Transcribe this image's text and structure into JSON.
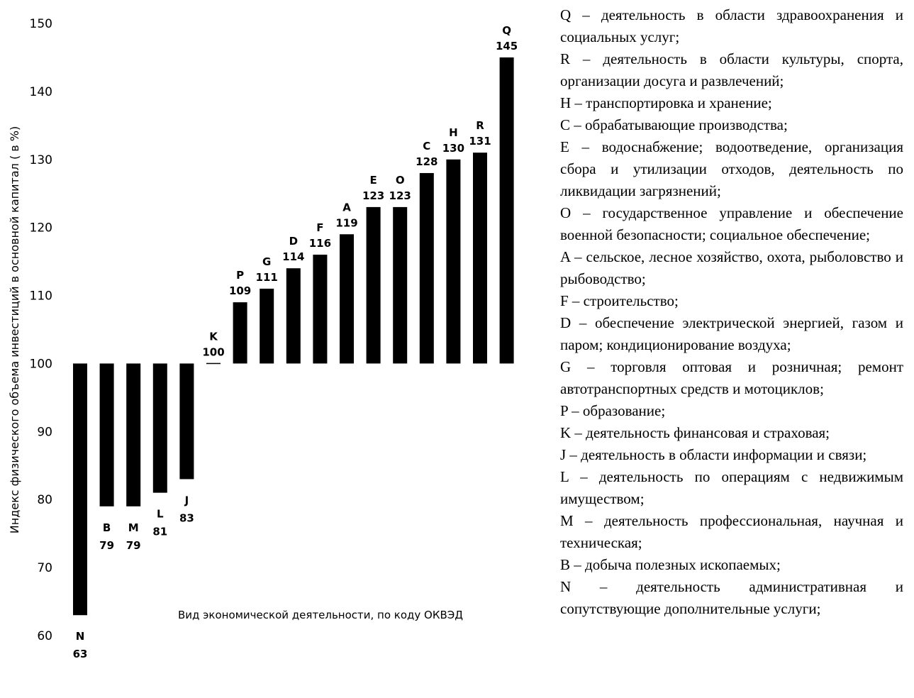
{
  "chart_data": {
    "type": "bar",
    "baseline": 100,
    "ylim": [
      60,
      150
    ],
    "yticks": [
      60,
      70,
      80,
      90,
      100,
      110,
      120,
      130,
      140,
      150
    ],
    "ylabel": "Индекс физического объема инвестиций в основной капитал ( в %)",
    "xlabel": "Вид экономической деятельности, по коду ОКВЭД",
    "grid": false,
    "categories": [
      "N",
      "B",
      "M",
      "L",
      "J",
      "K",
      "P",
      "G",
      "D",
      "F",
      "A",
      "E",
      "O",
      "C",
      "H",
      "R",
      "Q"
    ],
    "values": [
      63,
      79,
      79,
      81,
      83,
      100,
      109,
      111,
      114,
      116,
      119,
      123,
      123,
      128,
      130,
      131,
      145
    ],
    "bar_color": "#000000"
  },
  "legend": [
    "Q – деятельность в области здравоохранения и социальных услуг;",
    "R – деятельность в области культуры, спорта, организации досуга и развлечений;",
    "H – транспортировка и хранение;",
    "C – обрабатывающие производства;",
    "E – водоснабжение; водоотведение, организация сбора и утилизации отходов, деятельность по ликвидации загрязнений;",
    "O – государственное управление и обеспечение военной безопасности; социальное обеспечение;",
    "A – сельское, лесное хозяйство, охота, рыболовство и рыбоводство;",
    "F – строительство;",
    "D – обеспечение электрической энергией, газом и паром; кондиционирование воздуха;",
    "G – торговля оптовая и розничная; ремонт автотранспортных средств и мотоциклов;",
    "P – образование;",
    "K – деятельность финансовая и страховая;",
    "J – деятельность в области информации и связи;",
    "L – деятельность по операциям с недвижимым имуществом;",
    "M – деятельность профессиональная, научная и техническая;",
    "B – добыча полезных ископаемых;",
    "N – деятельность административная и сопутствующие дополнительные услуги;"
  ]
}
